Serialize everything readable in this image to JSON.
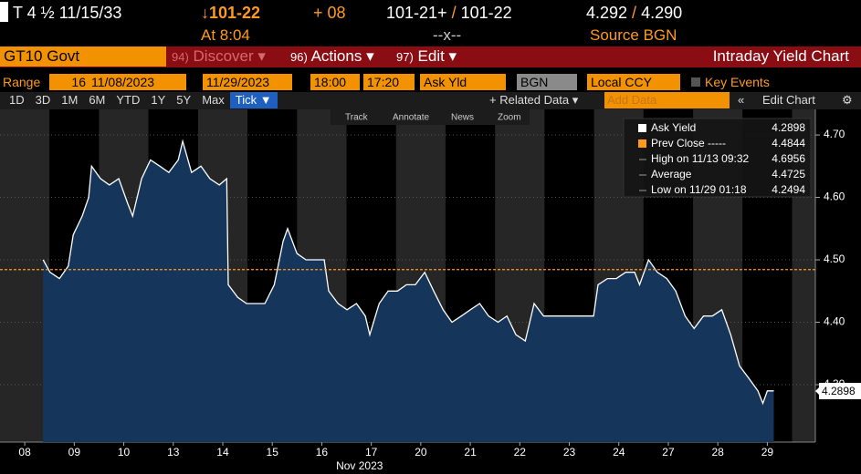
{
  "header": {
    "security": "T 4 ½ 11/15/33",
    "price": "↓101-22",
    "change": "+ 08",
    "bid": "101-21+",
    "ask": "101-22",
    "bid_yield": "4.292",
    "ask_yield": "4.290",
    "time": "At 8:04",
    "mid": "--x--",
    "source": "Source BGN"
  },
  "menu": {
    "ticker": "GT10 Govt",
    "items": [
      {
        "num": "94)",
        "label": "Discover ▾"
      },
      {
        "num": "96)",
        "label": "Actions ▾"
      },
      {
        "num": "97)",
        "label": "Edit ▾"
      }
    ],
    "title": "Intraday Yield Chart"
  },
  "controls": {
    "range_label": "Range",
    "range_value": "16",
    "start_date": "11/08/2023",
    "end_date": "11/29/2023",
    "start_time": "18:00",
    "end_time": "17:20",
    "field": "Ask Yld",
    "source": "BGN",
    "currency": "Local CCY",
    "key_events": "Key Events"
  },
  "periods": [
    "1D",
    "3D",
    "1M",
    "6M",
    "YTD",
    "1Y",
    "5Y",
    "Max",
    "Tick ▼"
  ],
  "related": "+ Related Data ▾",
  "add_data": "Add Data",
  "edit_chart": "Edit Chart",
  "tools": [
    "Track",
    "Annotate",
    "News",
    "Zoom"
  ],
  "chart": {
    "type": "area",
    "color": "#ffffff",
    "fill": "#16355a",
    "x": [
      0.87,
      1.01,
      1.2,
      1.38,
      1.48,
      1.66,
      1.79,
      1.85,
      2.03,
      2.21,
      2.4,
      2.58,
      2.68,
      2.86,
      3.04,
      3.23,
      3.41,
      3.6,
      3.69,
      3.87,
      4.06,
      4.24,
      4.43,
      4.58,
      4.61,
      4.8,
      4.98,
      5.17,
      5.35,
      5.54,
      5.72,
      5.81,
      6.0,
      6.18,
      6.37,
      6.55,
      6.64,
      6.83,
      7.01,
      7.2,
      7.38,
      7.47,
      7.66,
      7.84,
      8.03,
      8.21,
      8.39,
      8.58,
      8.76,
      8.95,
      9.13,
      9.32,
      9.5,
      9.69,
      9.87,
      10.06,
      10.24,
      10.42,
      10.61,
      10.79,
      10.98,
      11.16,
      11.99,
      12.08,
      12.27,
      12.45,
      12.64,
      12.82,
      12.92,
      13.1,
      13.28,
      13.47,
      13.65,
      13.84,
      14.02,
      14.21,
      14.39,
      14.58,
      14.76,
      14.94,
      15.13,
      15.31,
      15.41,
      15.5,
      15.63
    ],
    "values": [
      4.5,
      4.48,
      4.47,
      4.49,
      4.54,
      4.57,
      4.6,
      4.65,
      4.63,
      4.62,
      4.63,
      4.59,
      4.57,
      4.63,
      4.66,
      4.65,
      4.64,
      4.66,
      4.69,
      4.64,
      4.65,
      4.63,
      4.62,
      4.63,
      4.46,
      4.44,
      4.43,
      4.43,
      4.43,
      4.46,
      4.53,
      4.55,
      4.51,
      4.5,
      4.5,
      4.5,
      4.45,
      4.43,
      4.42,
      4.43,
      4.41,
      4.38,
      4.43,
      4.45,
      4.45,
      4.46,
      4.46,
      4.48,
      4.45,
      4.42,
      4.4,
      4.41,
      4.42,
      4.43,
      4.41,
      4.4,
      4.41,
      4.38,
      4.37,
      4.43,
      4.41,
      4.41,
      4.41,
      4.46,
      4.47,
      4.47,
      4.48,
      4.48,
      4.46,
      4.5,
      4.48,
      4.47,
      4.45,
      4.41,
      4.39,
      4.41,
      4.41,
      4.42,
      4.38,
      4.33,
      4.31,
      4.29,
      4.27,
      4.29,
      4.29
    ],
    "xlim": [
      0,
      16.47
    ],
    "ylim": [
      4.208,
      4.741
    ],
    "xticks": [
      {
        "value": 0.5,
        "label": "08"
      },
      {
        "value": 1.5,
        "label": "09"
      },
      {
        "value": 2.5,
        "label": "10"
      },
      {
        "value": 3.5,
        "label": "13"
      },
      {
        "value": 4.5,
        "label": "14"
      },
      {
        "value": 5.5,
        "label": "15"
      },
      {
        "value": 6.5,
        "label": "16"
      },
      {
        "value": 7.5,
        "label": "17"
      },
      {
        "value": 8.5,
        "label": "20"
      },
      {
        "value": 9.5,
        "label": "21"
      },
      {
        "value": 10.5,
        "label": "22"
      },
      {
        "value": 11.5,
        "label": "23"
      },
      {
        "value": 12.5,
        "label": "24"
      },
      {
        "value": 13.5,
        "label": "27"
      },
      {
        "value": 14.5,
        "label": "28"
      },
      {
        "value": 15.5,
        "label": "29"
      }
    ],
    "yticks": [
      {
        "value": 4.3,
        "label": "4.30"
      },
      {
        "value": 4.4,
        "label": "4.40"
      },
      {
        "value": 4.5,
        "label": "4.50"
      },
      {
        "value": 4.6,
        "label": "4.60"
      },
      {
        "value": 4.7,
        "label": "4.70"
      }
    ],
    "x_label": "Nov 2023",
    "ref_color": "#ff9a1f",
    "legend": [
      {
        "name": "Ask Yield",
        "value": 4.2898
      },
      {
        "name": "Prev Close -----",
        "value": 4.4844
      },
      {
        "name": "High on 11/13 09:32",
        "value": 4.6956
      },
      {
        "name": "Average",
        "value": 4.4725
      },
      {
        "name": "Low on 11/29 01:18",
        "value": 4.2494
      }
    ]
  }
}
